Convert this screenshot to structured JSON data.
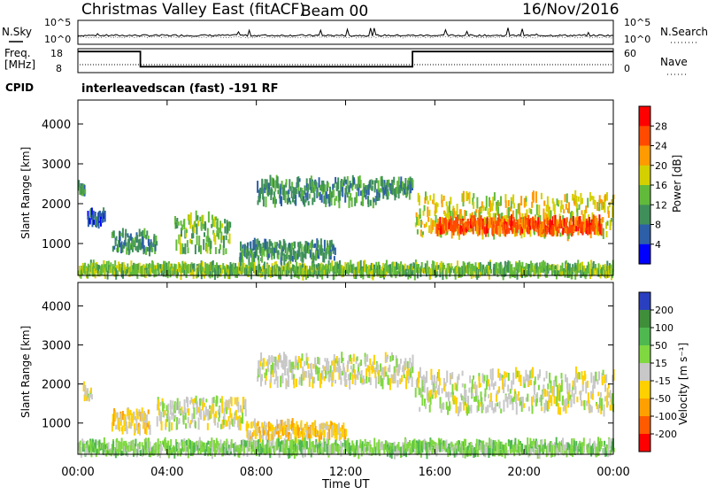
{
  "header": {
    "title": "Christmas Valley East (fitACF)",
    "beam": "Beam 00",
    "date": "16/Nov/2016"
  },
  "chart_data": [
    {
      "type": "line",
      "name": "noise-panel",
      "left_labels": [
        "N.Sky"
      ],
      "right_labels": [
        "N.Search"
      ],
      "left_ticks": [
        "10^5",
        "10^0"
      ],
      "right_ticks": [
        "10^5",
        "10^0"
      ],
      "scale": "log"
    },
    {
      "type": "line",
      "name": "frequency-nave-panel",
      "left_labels": [
        "Freq.",
        "[MHz]"
      ],
      "right_labels": [
        "Nave"
      ],
      "left_ticks": [
        "18",
        "8"
      ],
      "right_ticks": [
        "60",
        "0"
      ],
      "ylim_left": [
        8,
        18
      ],
      "ylim_right": [
        0,
        60
      ],
      "segments_hours": [
        [
          0,
          2.8,
          16.8
        ],
        [
          2.8,
          15.0,
          10.5
        ],
        [
          15.0,
          24.0,
          16.8
        ]
      ],
      "nave_approx": 20
    },
    {
      "type": "text",
      "name": "cpid-panel",
      "label": "CPID",
      "value": "interleavedscan (fast) -191 RF"
    },
    {
      "type": "heatmap",
      "name": "power-panel",
      "ylabel": "Slant Range [km]",
      "ylim": [
        200,
        4600
      ],
      "yticks": [
        "4000",
        "3000",
        "2000",
        "1000"
      ],
      "yticks_values": [
        4000,
        3000,
        2000,
        1000
      ],
      "colorbar_label": "Power [dB]",
      "colorbar_ticks": [
        "28",
        "24",
        "20",
        "16",
        "12",
        "8",
        "4"
      ],
      "colorbar_colors": [
        "#ff0000",
        "#ff4a00",
        "#ff9a00",
        "#d4d000",
        "#62ba3a",
        "#3f8f5a",
        "#2c5fa8",
        "#0000ff"
      ],
      "regions": [
        {
          "t0": 0.0,
          "t1": 0.3,
          "r0": 2300,
          "r1": 2500,
          "level": 2
        },
        {
          "t0": 0.4,
          "t1": 1.2,
          "r0": 1500,
          "r1": 1800,
          "level": 1
        },
        {
          "t0": 1.5,
          "t1": 3.5,
          "r0": 800,
          "r1": 1300,
          "level": 2
        },
        {
          "t0": 4.3,
          "t1": 6.8,
          "r0": 800,
          "r1": 1700,
          "level": 3
        },
        {
          "t0": 7.2,
          "t1": 11.5,
          "r0": 600,
          "r1": 1000,
          "level": 2
        },
        {
          "t0": 8.0,
          "t1": 13.5,
          "r0": 2000,
          "r1": 2600,
          "level": 2
        },
        {
          "t0": 13.5,
          "t1": 15.0,
          "r0": 2200,
          "r1": 2600,
          "level": 2
        },
        {
          "t0": 15.1,
          "t1": 24.0,
          "r0": 1200,
          "r1": 2200,
          "level": 4
        },
        {
          "t0": 16.0,
          "t1": 23.5,
          "r0": 1300,
          "r1": 1600,
          "level": 6
        },
        {
          "t0": 0.0,
          "t1": 24.0,
          "r0": 200,
          "r1": 450,
          "level": 3
        }
      ]
    },
    {
      "type": "heatmap",
      "name": "velocity-panel",
      "ylabel": "Slant Range [km]",
      "ylim": [
        200,
        4600
      ],
      "yticks": [
        "4000",
        "3000",
        "2000",
        "1000"
      ],
      "yticks_values": [
        4000,
        3000,
        2000,
        1000
      ],
      "colorbar_label": "Velocity [m s⁻¹]",
      "colorbar_ticks": [
        "200",
        "100",
        "50",
        "15",
        "-15",
        "-50",
        "-100",
        "-200"
      ],
      "colorbar_colors": [
        "#2a3fbf",
        "#3f8f3a",
        "#4fb84f",
        "#7fd840",
        "#c8c8c8",
        "#ffd000",
        "#ffa000",
        "#ff5a00",
        "#ff0000"
      ],
      "regions": [
        {
          "t0": 0.2,
          "t1": 0.6,
          "r0": 1600,
          "r1": 2000,
          "level": 4
        },
        {
          "t0": 1.5,
          "t1": 3.2,
          "r0": 800,
          "r1": 1300,
          "level": 3
        },
        {
          "t0": 3.5,
          "t1": 7.5,
          "r0": 900,
          "r1": 1600,
          "level": 4
        },
        {
          "t0": 7.5,
          "t1": 12.0,
          "r0": 600,
          "r1": 1000,
          "level": 3
        },
        {
          "t0": 8.0,
          "t1": 15.0,
          "r0": 2000,
          "r1": 2700,
          "level": 4
        },
        {
          "t0": 15.1,
          "t1": 24.0,
          "r0": 1300,
          "r1": 2300,
          "level": 4
        },
        {
          "t0": 0.0,
          "t1": 24.0,
          "r0": 200,
          "r1": 500,
          "level": 5
        }
      ]
    }
  ],
  "xaxis": {
    "label": "Time UT",
    "ticks": [
      "00:00",
      "04:00",
      "08:00",
      "12:00",
      "16:00",
      "20:00",
      "00:00"
    ],
    "xlim": [
      0,
      24
    ]
  }
}
